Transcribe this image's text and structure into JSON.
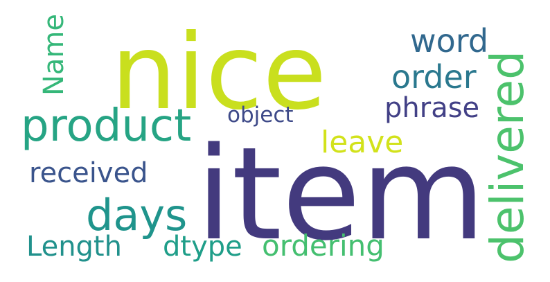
{
  "words": [
    {
      "text": "nice",
      "color": "#c9df1e",
      "orientation": "horizontal"
    },
    {
      "text": "item",
      "color": "#433a7e",
      "orientation": "horizontal"
    },
    {
      "text": "product",
      "color": "#26a484",
      "orientation": "horizontal"
    },
    {
      "text": "days",
      "color": "#1f948c",
      "orientation": "horizontal"
    },
    {
      "text": "delivered",
      "color": "#4cc26c",
      "orientation": "vertical"
    },
    {
      "text": "ordering",
      "color": "#44bf70",
      "orientation": "horizontal"
    },
    {
      "text": "received",
      "color": "#3a548c",
      "orientation": "horizontal"
    },
    {
      "text": "Length",
      "color": "#21918c",
      "orientation": "horizontal"
    },
    {
      "text": "dtype",
      "color": "#1f9e89",
      "orientation": "horizontal"
    },
    {
      "text": "word",
      "color": "#31688e",
      "orientation": "horizontal"
    },
    {
      "text": "order",
      "color": "#2a788e",
      "orientation": "horizontal"
    },
    {
      "text": "phrase",
      "color": "#424086",
      "orientation": "horizontal"
    },
    {
      "text": "leave",
      "color": "#d2e21b",
      "orientation": "horizontal"
    },
    {
      "text": "Name",
      "color": "#35b779",
      "orientation": "vertical"
    },
    {
      "text": "object",
      "color": "#3e4a89",
      "orientation": "horizontal"
    }
  ]
}
